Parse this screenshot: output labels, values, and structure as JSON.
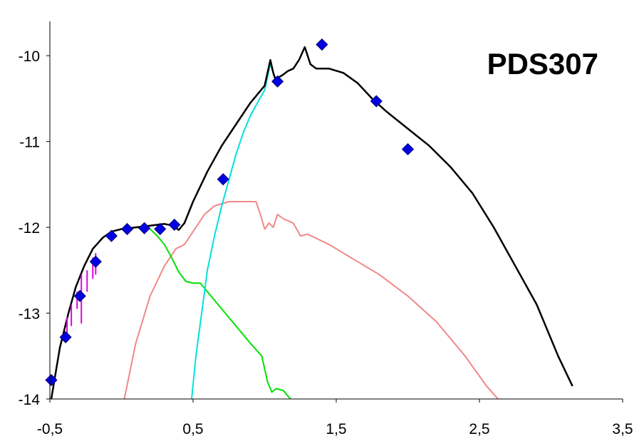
{
  "chart_data": {
    "type": "line",
    "title": "PDS307",
    "xlabel": "",
    "ylabel": "",
    "xlim": [
      -0.5,
      3.5
    ],
    "ylim": [
      -14,
      -9.6
    ],
    "x_ticks": [
      {
        "value": -0.5,
        "label": "-0,5"
      },
      {
        "value": 0.5,
        "label": "0,5"
      },
      {
        "value": 1.5,
        "label": "1,5"
      },
      {
        "value": 2.5,
        "label": "2,5"
      },
      {
        "value": 3.5,
        "label": "3,5"
      }
    ],
    "y_ticks": [
      {
        "value": -10,
        "label": "-10"
      },
      {
        "value": -11,
        "label": "-11"
      },
      {
        "value": -12,
        "label": "-12"
      },
      {
        "value": -13,
        "label": "-13"
      },
      {
        "value": -14,
        "label": "-14"
      }
    ],
    "grid": false,
    "legend": "none",
    "series": [
      {
        "type": "line",
        "color": "#000000",
        "x": [
          -0.49,
          -0.47,
          -0.43,
          -0.37,
          -0.32,
          -0.26,
          -0.2,
          -0.13,
          -0.07,
          0.0,
          0.1,
          0.2,
          0.3,
          0.36,
          0.4,
          0.44,
          0.5,
          0.6,
          0.7,
          0.8,
          0.9,
          1.0,
          1.04,
          1.06,
          1.08,
          1.1,
          1.13,
          1.16,
          1.2,
          1.24,
          1.28,
          1.32,
          1.36,
          1.45,
          1.55,
          1.65,
          1.75,
          1.85,
          2.0,
          2.15,
          2.3,
          2.45,
          2.6,
          2.75,
          2.9,
          3.05,
          3.15
        ],
        "y": [
          -14.0,
          -13.8,
          -13.4,
          -13.0,
          -12.7,
          -12.45,
          -12.25,
          -12.12,
          -12.05,
          -12.02,
          -12.0,
          -11.98,
          -11.96,
          -11.98,
          -12.03,
          -11.95,
          -11.7,
          -11.35,
          -11.05,
          -10.8,
          -10.55,
          -10.35,
          -10.05,
          -10.2,
          -10.3,
          -10.25,
          -10.22,
          -10.18,
          -10.15,
          -10.05,
          -9.9,
          -10.1,
          -10.15,
          -10.15,
          -10.2,
          -10.32,
          -10.5,
          -10.65,
          -10.85,
          -11.05,
          -11.3,
          -11.6,
          -12.0,
          -12.45,
          -12.9,
          -13.5,
          -13.85
        ]
      },
      {
        "type": "line",
        "color": "#00e0e0",
        "x": [
          0.49,
          0.52,
          0.56,
          0.6,
          0.65,
          0.7,
          0.75,
          0.8,
          0.85,
          0.9,
          0.95,
          1.0,
          1.04,
          1.06,
          1.08,
          1.1
        ],
        "y": [
          -14.0,
          -13.5,
          -13.0,
          -12.5,
          -12.1,
          -11.75,
          -11.45,
          -11.15,
          -10.9,
          -10.7,
          -10.55,
          -10.4,
          -10.1,
          -10.2,
          -10.3,
          -10.28
        ]
      },
      {
        "type": "line",
        "color": "#f08888",
        "x": [
          0.02,
          0.1,
          0.2,
          0.3,
          0.38,
          0.44,
          0.5,
          0.58,
          0.65,
          0.75,
          0.85,
          0.94,
          0.97,
          1.0,
          1.03,
          1.06,
          1.09,
          1.13,
          1.2,
          1.25,
          1.3,
          1.35,
          1.45,
          1.6,
          1.8,
          2.0,
          2.2,
          2.4,
          2.55,
          2.63
        ],
        "y": [
          -14.0,
          -13.35,
          -12.8,
          -12.45,
          -12.25,
          -12.2,
          -12.05,
          -11.85,
          -11.75,
          -11.7,
          -11.7,
          -11.7,
          -11.85,
          -12.02,
          -11.95,
          -12.0,
          -11.85,
          -11.9,
          -11.95,
          -12.1,
          -12.08,
          -12.12,
          -12.2,
          -12.35,
          -12.55,
          -12.8,
          -13.1,
          -13.5,
          -13.85,
          -14.0
        ]
      },
      {
        "type": "line",
        "color": "#00e000",
        "x": [
          0.1,
          0.2,
          0.25,
          0.3,
          0.35,
          0.4,
          0.45,
          0.5,
          0.55,
          0.6,
          0.7,
          0.8,
          0.9,
          0.98,
          1.02,
          1.05,
          1.08,
          1.13,
          1.18
        ],
        "y": [
          -12.0,
          -12.02,
          -12.1,
          -12.2,
          -12.35,
          -12.52,
          -12.63,
          -12.65,
          -12.65,
          -12.75,
          -12.95,
          -13.15,
          -13.35,
          -13.5,
          -13.8,
          -13.92,
          -13.88,
          -13.9,
          -14.0
        ]
      }
    ],
    "points": {
      "color": "#0000e0",
      "marker": "diamond",
      "x": [
        -0.49,
        -0.39,
        -0.29,
        -0.18,
        -0.07,
        0.04,
        0.16,
        0.27,
        0.37,
        0.71,
        1.09,
        1.4,
        1.78,
        2.0
      ],
      "y": [
        -13.78,
        -13.28,
        -12.8,
        -12.4,
        -12.1,
        -12.02,
        -12.01,
        -12.02,
        -11.97,
        -11.44,
        -10.3,
        -9.87,
        -10.53,
        -11.09
      ]
    },
    "error_bars": {
      "color": "#e000e0",
      "x": [
        -0.38,
        -0.35,
        -0.31,
        -0.28,
        -0.24,
        -0.2,
        -0.18
      ],
      "y_low": [
        -13.25,
        -13.15,
        -12.95,
        -13.12,
        -12.75,
        -12.6,
        -12.55
      ],
      "y_high": [
        -13.05,
        -12.9,
        -12.75,
        -12.55,
        -12.5,
        -12.35,
        -12.3
      ]
    }
  }
}
